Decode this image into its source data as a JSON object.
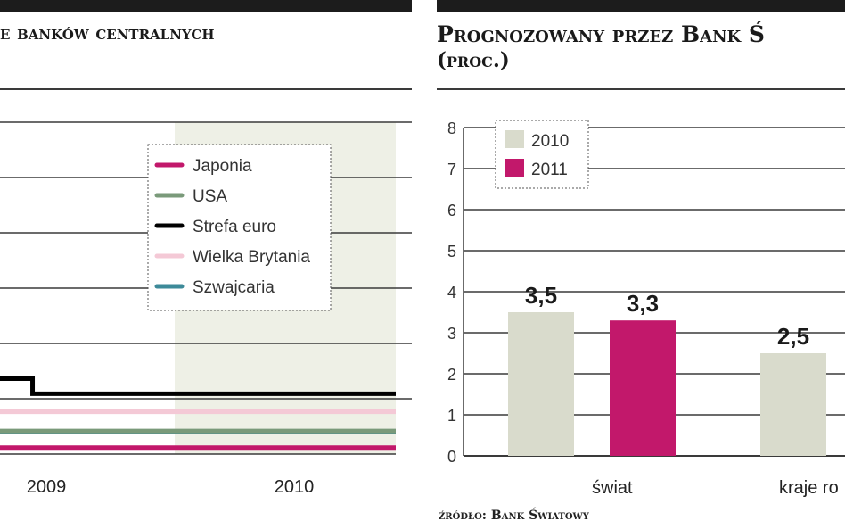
{
  "left_panel": {
    "title": "e banków centralnych"
  },
  "right_panel": {
    "title_line1": "Prognozowany przez Bank Ś",
    "title_line2": "(proc.)",
    "source": "źródło: Bank Światowy"
  },
  "chart_data": [
    {
      "type": "line",
      "title": "e banków centralnych",
      "x_ticks": [
        "2009",
        "2010"
      ],
      "legend_position": "top-right",
      "legend": [
        {
          "name": "Japonia",
          "color": "#c2186b"
        },
        {
          "name": "USA",
          "color": "#7a9a7a"
        },
        {
          "name": "Strefa euro",
          "color": "#000000"
        },
        {
          "name": "Wielka Brytania",
          "color": "#f4c9d6"
        },
        {
          "name": "Szwajcaria",
          "color": "#3d8a99"
        }
      ],
      "grid": true,
      "shaded_region": "2009/2010 onward",
      "series": [
        {
          "name": "Strefa euro",
          "points": [
            [
              2008.92,
              1.25
            ],
            [
              2009.0,
              1.25
            ],
            [
              2009.05,
              1.0
            ],
            [
              2010.5,
              1.0
            ]
          ]
        },
        {
          "name": "Wielka Brytania",
          "points": [
            [
              2008.92,
              0.5
            ],
            [
              2010.5,
              0.5
            ]
          ]
        },
        {
          "name": "Szwajcaria",
          "points": [
            [
              2008.92,
              0.25
            ],
            [
              2010.5,
              0.25
            ]
          ]
        },
        {
          "name": "USA",
          "points": [
            [
              2008.92,
              0.25
            ],
            [
              2010.5,
              0.25
            ]
          ]
        },
        {
          "name": "Japonia",
          "points": [
            [
              2008.92,
              0.1
            ],
            [
              2010.5,
              0.1
            ]
          ]
        }
      ]
    },
    {
      "type": "bar",
      "title": "Prognozowany przez Bank Ś (proc.)",
      "categories": [
        "świat",
        "kraje ro"
      ],
      "ylim": [
        0,
        8
      ],
      "y_ticks": [
        "0",
        "1",
        "2",
        "3",
        "4",
        "5",
        "6",
        "7",
        "8"
      ],
      "grid": true,
      "legend_position": "top-left",
      "series": [
        {
          "name": "2010",
          "color": "#d9dbcc",
          "values": [
            3.5,
            2.5
          ],
          "labels": [
            "3,5",
            "2,5"
          ]
        },
        {
          "name": "2011",
          "color": "#c2186b",
          "values": [
            3.3,
            null
          ],
          "labels": [
            "3,3",
            ""
          ]
        }
      ]
    }
  ]
}
